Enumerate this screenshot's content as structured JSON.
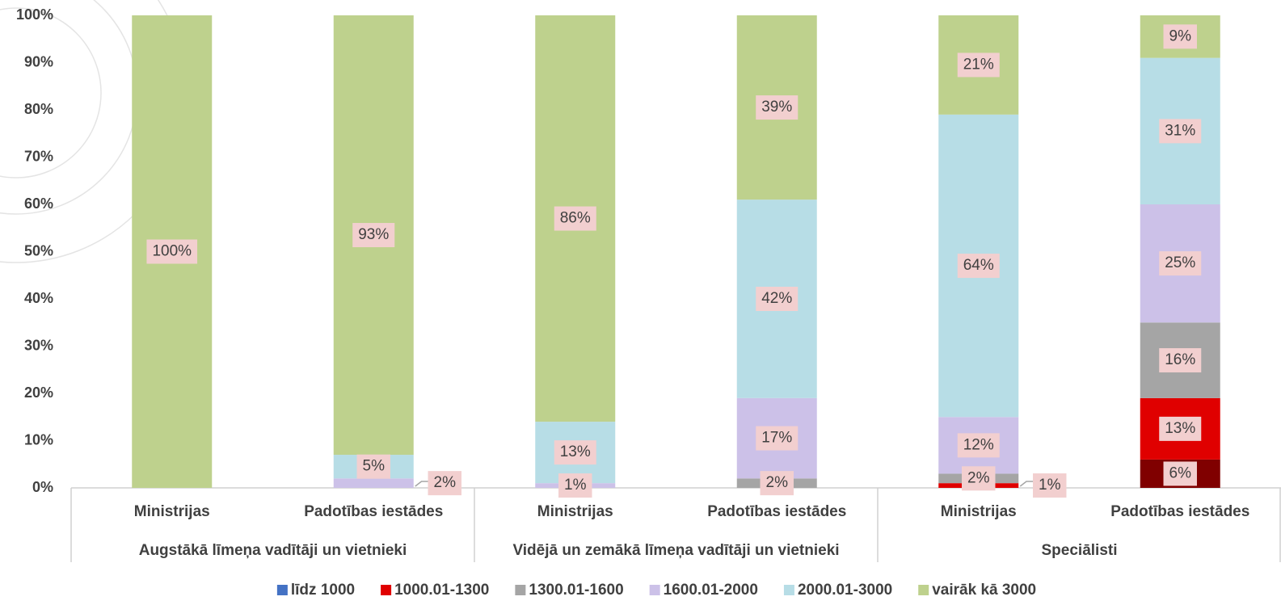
{
  "chart_data": {
    "type": "stacked_bar",
    "categories": [
      "Ministrijas",
      "Padotības iestādes",
      "Ministrijas",
      "Padotības iestādes",
      "Ministrijas",
      "Padotības iestādes"
    ],
    "groups": [
      "Augstākā līmeņa vadītāji un vietnieki",
      "Vidējā un zemākā līmeņa vadītāji un vietnieki",
      "Speciālisti"
    ],
    "series": [
      {
        "name": "līdz 1000",
        "color": "#4472c4",
        "point_colors": [
          null,
          null,
          null,
          null,
          null,
          "#800000"
        ],
        "values": [
          0,
          0,
          0,
          0,
          0,
          6
        ],
        "value_labels": [
          null,
          null,
          null,
          null,
          null,
          "6%"
        ]
      },
      {
        "name": "1000.01-1300",
        "color": "#e00000",
        "values": [
          0,
          0,
          0,
          0,
          1,
          13
        ],
        "value_labels": [
          null,
          null,
          null,
          null,
          "1%",
          "13%"
        ]
      },
      {
        "name": "1300.01-1600",
        "color": "#a5a5a5",
        "values": [
          0,
          0,
          0,
          2,
          2,
          16
        ],
        "value_labels": [
          null,
          null,
          null,
          "2%",
          "2%",
          "16%"
        ]
      },
      {
        "name": "1600.01-2000",
        "color": "#ccc1e8",
        "values": [
          0,
          2,
          1,
          17,
          12,
          25
        ],
        "value_labels": [
          null,
          "2%",
          "1%",
          "17%",
          "12%",
          "25%"
        ]
      },
      {
        "name": "2000.01-3000",
        "color": "#b7dde6",
        "values": [
          0,
          5,
          13,
          42,
          64,
          31
        ],
        "value_labels": [
          null,
          "5%",
          "13%",
          "42%",
          "64%",
          "31%"
        ]
      },
      {
        "name": "vairāk kā 3000",
        "color": "#bed18d",
        "values": [
          100,
          93,
          86,
          39,
          21,
          9
        ],
        "value_labels": [
          "100%",
          "93%",
          "86%",
          "39%",
          "21%",
          "9%"
        ]
      }
    ],
    "ylim": [
      0,
      100
    ],
    "yticks": [
      {
        "value": 0,
        "label": "0%"
      },
      {
        "value": 10,
        "label": "10%"
      },
      {
        "value": 20,
        "label": "20%"
      },
      {
        "value": 30,
        "label": "30%"
      },
      {
        "value": 40,
        "label": "40%"
      },
      {
        "value": 50,
        "label": "50%"
      },
      {
        "value": 60,
        "label": "60%"
      },
      {
        "value": 70,
        "label": "70%"
      },
      {
        "value": 80,
        "label": "80%"
      },
      {
        "value": 90,
        "label": "90%"
      },
      {
        "value": 100,
        "label": "100%"
      }
    ],
    "legend": "bottom"
  }
}
